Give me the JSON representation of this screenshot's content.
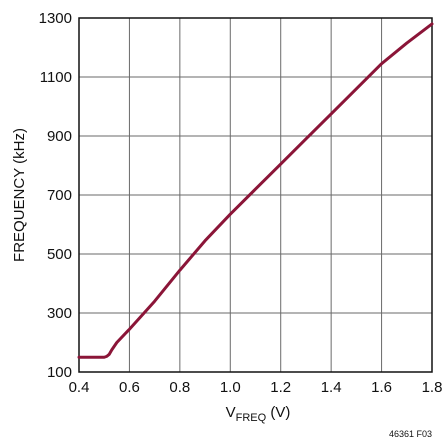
{
  "chart_data": {
    "type": "line",
    "title": "",
    "xlabel_main": "V",
    "xlabel_sub": "FREQ",
    "xlabel_unit": " (V)",
    "ylabel": "FREQUENCY (kHz)",
    "xlim": [
      0.4,
      1.8
    ],
    "ylim": [
      100,
      1300
    ],
    "x_ticks": [
      0.4,
      0.6,
      0.8,
      1.0,
      1.2,
      1.4,
      1.6,
      1.8
    ],
    "x_tick_labels": [
      "0.4",
      "0.6",
      "0.8",
      "1.0",
      "1.2",
      "1.4",
      "1.6",
      "1.8"
    ],
    "y_ticks": [
      100,
      300,
      500,
      700,
      900,
      1100,
      1300
    ],
    "y_tick_labels": [
      "100",
      "300",
      "500",
      "700",
      "900",
      "1100",
      "1300"
    ],
    "grid": true,
    "series": [
      {
        "color": "#8b1538",
        "x": [
          0.4,
          0.45,
          0.5,
          0.51,
          0.52,
          0.53,
          0.55,
          0.6,
          0.7,
          0.8,
          0.9,
          1.0,
          1.1,
          1.2,
          1.3,
          1.4,
          1.5,
          1.6,
          1.7,
          1.8
        ],
        "y": [
          150,
          150,
          150,
          153,
          160,
          175,
          200,
          245,
          340,
          445,
          545,
          635,
          720,
          805,
          890,
          975,
          1060,
          1145,
          1215,
          1280
        ]
      }
    ],
    "figure_id": "46361 F03"
  }
}
